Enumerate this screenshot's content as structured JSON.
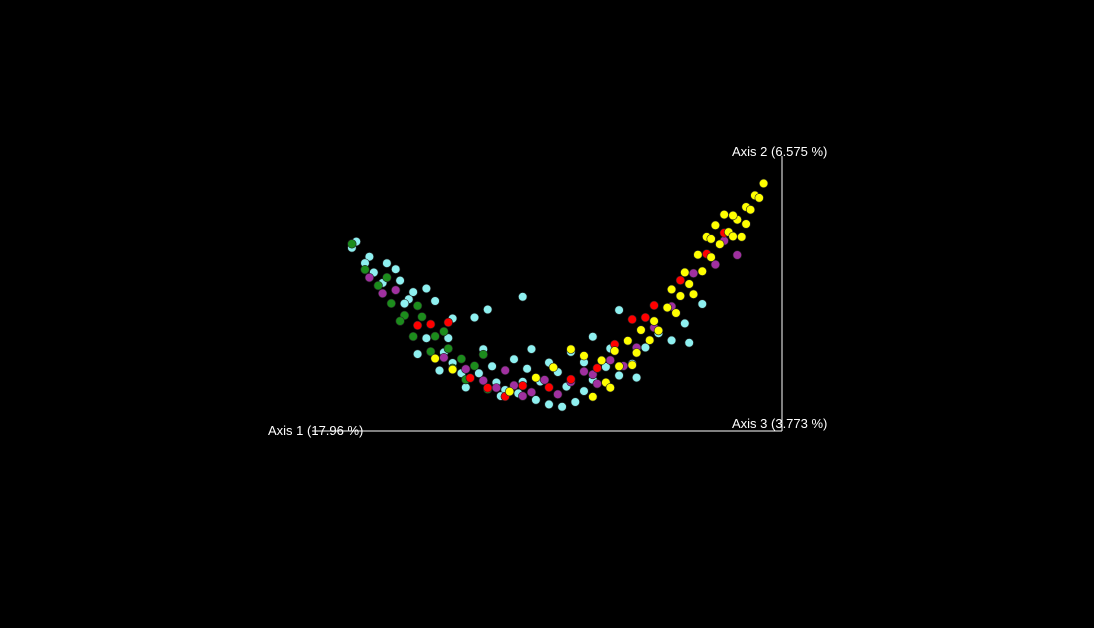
{
  "chart_data": {
    "type": "scatter",
    "title": "",
    "axes": {
      "x": {
        "label": "Axis 1 (17.96 %)"
      },
      "y": {
        "label": "Axis 2 (6.575 %)"
      },
      "z": {
        "label": "Axis 3 (3.773 %)"
      }
    },
    "background": "#000000",
    "axis_color": "#ffffff",
    "grid": false,
    "legend": "none",
    "series": [
      {
        "color": "#8ef0f0",
        "points": [
          [
            0.06,
            0.93
          ],
          [
            0.09,
            0.88
          ],
          [
            0.13,
            0.91
          ],
          [
            0.16,
            0.83
          ],
          [
            0.1,
            0.78
          ],
          [
            0.18,
            0.72
          ],
          [
            0.22,
            0.86
          ],
          [
            0.24,
            0.79
          ],
          [
            0.28,
            0.7
          ],
          [
            0.33,
            0.75
          ],
          [
            0.36,
            0.83
          ],
          [
            0.44,
            0.95
          ],
          [
            0.35,
            0.52
          ],
          [
            0.42,
            0.47
          ],
          [
            0.45,
            0.4
          ],
          [
            0.22,
            0.48
          ],
          [
            0.26,
            0.42
          ],
          [
            0.28,
            0.36
          ],
          [
            0.3,
            0.3
          ],
          [
            0.34,
            0.33
          ],
          [
            0.38,
            0.28
          ],
          [
            0.4,
            0.23
          ],
          [
            0.43,
            0.21
          ],
          [
            0.47,
            0.16
          ],
          [
            0.5,
            0.12
          ],
          [
            0.53,
            0.09
          ],
          [
            0.56,
            0.11
          ],
          [
            0.58,
            0.18
          ],
          [
            0.6,
            0.25
          ],
          [
            0.63,
            0.32
          ],
          [
            0.66,
            0.22
          ],
          [
            0.69,
            0.27
          ],
          [
            0.72,
            0.35
          ],
          [
            0.75,
            0.41
          ],
          [
            0.78,
            0.3
          ],
          [
            0.81,
            0.37
          ],
          [
            0.85,
            0.43
          ],
          [
            0.55,
            0.5
          ],
          [
            0.6,
            0.58
          ],
          [
            0.66,
            0.72
          ],
          [
            0.48,
            0.3
          ],
          [
            0.52,
            0.36
          ],
          [
            0.54,
            0.24
          ],
          [
            0.39,
            0.18
          ],
          [
            0.31,
            0.2
          ],
          [
            0.25,
            0.27
          ],
          [
            0.2,
            0.33
          ],
          [
            0.15,
            0.9
          ],
          [
            0.12,
            0.74
          ],
          [
            0.08,
            0.81
          ],
          [
            0.17,
            0.67
          ],
          [
            0.46,
            0.55
          ],
          [
            0.5,
            0.44
          ],
          [
            0.37,
            0.4
          ],
          [
            0.64,
            0.45
          ],
          [
            0.7,
            0.15
          ],
          [
            0.82,
            0.2
          ],
          [
            0.44,
            0.3
          ],
          [
            0.58,
            0.4
          ],
          [
            0.05,
            0.86
          ],
          [
            0.19,
            0.79
          ],
          [
            0.27,
            0.54
          ]
        ]
      },
      {
        "color": "#1c8c1c",
        "points": [
          [
            0.05,
            0.89
          ],
          [
            0.08,
            0.76
          ],
          [
            0.11,
            0.7
          ],
          [
            0.14,
            0.62
          ],
          [
            0.17,
            0.58
          ],
          [
            0.21,
            0.63
          ],
          [
            0.24,
            0.52
          ],
          [
            0.27,
            0.46
          ],
          [
            0.3,
            0.41
          ],
          [
            0.33,
            0.38
          ],
          [
            0.19,
            0.45
          ],
          [
            0.23,
            0.39
          ],
          [
            0.28,
            0.32
          ],
          [
            0.31,
            0.26
          ],
          [
            0.36,
            0.22
          ],
          [
            0.26,
            0.58
          ],
          [
            0.16,
            0.52
          ],
          [
            0.13,
            0.8
          ],
          [
            0.2,
            0.7
          ],
          [
            0.35,
            0.48
          ]
        ]
      },
      {
        "color": "#a030a0",
        "points": [
          [
            0.09,
            0.72
          ],
          [
            0.12,
            0.66
          ],
          [
            0.15,
            0.74
          ],
          [
            0.26,
            0.38
          ],
          [
            0.31,
            0.34
          ],
          [
            0.35,
            0.28
          ],
          [
            0.38,
            0.24
          ],
          [
            0.42,
            0.27
          ],
          [
            0.46,
            0.22
          ],
          [
            0.49,
            0.31
          ],
          [
            0.52,
            0.19
          ],
          [
            0.55,
            0.27
          ],
          [
            0.58,
            0.33
          ],
          [
            0.61,
            0.21
          ],
          [
            0.64,
            0.36
          ],
          [
            0.67,
            0.28
          ],
          [
            0.7,
            0.38
          ],
          [
            0.74,
            0.47
          ],
          [
            0.78,
            0.56
          ],
          [
            0.83,
            0.71
          ],
          [
            0.88,
            0.66
          ],
          [
            0.4,
            0.38
          ],
          [
            0.44,
            0.19
          ],
          [
            0.6,
            0.29
          ],
          [
            0.9,
            0.79
          ],
          [
            0.93,
            0.6
          ]
        ]
      },
      {
        "color": "#ff0000",
        "points": [
          [
            0.2,
            0.55
          ],
          [
            0.23,
            0.6
          ],
          [
            0.27,
            0.66
          ],
          [
            0.32,
            0.28
          ],
          [
            0.36,
            0.23
          ],
          [
            0.4,
            0.18
          ],
          [
            0.44,
            0.27
          ],
          [
            0.5,
            0.25
          ],
          [
            0.55,
            0.29
          ],
          [
            0.61,
            0.33
          ],
          [
            0.65,
            0.47
          ],
          [
            0.69,
            0.61
          ],
          [
            0.74,
            0.64
          ],
          [
            0.8,
            0.72
          ],
          [
            0.86,
            0.79
          ],
          [
            0.9,
            0.85
          ],
          [
            0.72,
            0.58
          ]
        ]
      },
      {
        "color": "#ffff00",
        "points": [
          [
            0.62,
            0.38
          ],
          [
            0.65,
            0.42
          ],
          [
            0.68,
            0.46
          ],
          [
            0.71,
            0.5
          ],
          [
            0.74,
            0.52
          ],
          [
            0.77,
            0.57
          ],
          [
            0.8,
            0.6
          ],
          [
            0.82,
            0.65
          ],
          [
            0.85,
            0.68
          ],
          [
            0.87,
            0.74
          ],
          [
            0.89,
            0.79
          ],
          [
            0.91,
            0.83
          ],
          [
            0.93,
            0.87
          ],
          [
            0.95,
            0.91
          ],
          [
            0.97,
            0.94
          ],
          [
            0.99,
            0.97
          ],
          [
            0.86,
            0.92
          ],
          [
            0.88,
            0.96
          ],
          [
            0.9,
            0.99
          ],
          [
            0.92,
            0.77
          ],
          [
            0.94,
            0.71
          ],
          [
            0.96,
            0.86
          ],
          [
            0.83,
            0.55
          ],
          [
            0.79,
            0.49
          ],
          [
            0.75,
            0.43
          ],
          [
            0.7,
            0.34
          ],
          [
            0.66,
            0.29
          ],
          [
            0.63,
            0.2
          ],
          [
            0.58,
            0.45
          ],
          [
            0.55,
            0.52
          ],
          [
            0.78,
            0.69
          ],
          [
            0.81,
            0.76
          ],
          [
            0.84,
            0.83
          ],
          [
            0.87,
            0.88
          ],
          [
            0.92,
            0.93
          ],
          [
            0.98,
            0.89
          ],
          [
            0.73,
            0.39
          ],
          [
            0.69,
            0.26
          ],
          [
            0.64,
            0.15
          ],
          [
            0.6,
            0.12
          ],
          [
            0.24,
            0.35
          ],
          [
            0.28,
            0.31
          ],
          [
            0.41,
            0.22
          ],
          [
            0.47,
            0.33
          ],
          [
            0.51,
            0.4
          ],
          [
            0.95,
            0.78
          ]
        ]
      }
    ]
  }
}
